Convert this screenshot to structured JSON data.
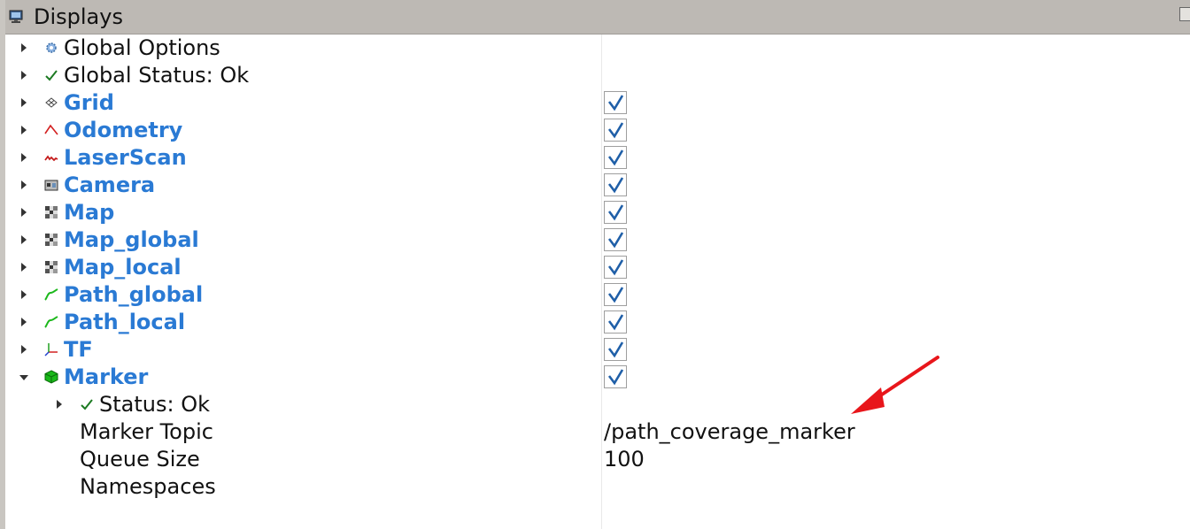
{
  "panel": {
    "title": "Displays"
  },
  "tree": {
    "rows": [
      {
        "label": "Global Options",
        "icon": "gear-icon",
        "kind": "plain"
      },
      {
        "label": "Global Status: Ok",
        "icon": "checkmark-icon",
        "kind": "plain"
      },
      {
        "label": "Grid",
        "icon": "grid-icon",
        "kind": "display",
        "enabled": true
      },
      {
        "label": "Odometry",
        "icon": "odometry-icon",
        "kind": "display",
        "enabled": true
      },
      {
        "label": "LaserScan",
        "icon": "laserscan-icon",
        "kind": "display",
        "enabled": true
      },
      {
        "label": "Camera",
        "icon": "camera-icon",
        "kind": "display",
        "enabled": true
      },
      {
        "label": "Map",
        "icon": "map-icon",
        "kind": "display",
        "enabled": true
      },
      {
        "label": "Map_global",
        "icon": "map-icon",
        "kind": "display",
        "enabled": true
      },
      {
        "label": "Map_local",
        "icon": "map-icon",
        "kind": "display",
        "enabled": true
      },
      {
        "label": "Path_global",
        "icon": "path-icon",
        "kind": "display",
        "enabled": true
      },
      {
        "label": "Path_local",
        "icon": "path-icon",
        "kind": "display",
        "enabled": true
      },
      {
        "label": "TF",
        "icon": "tf-axes-icon",
        "kind": "display",
        "enabled": true
      },
      {
        "label": "Marker",
        "icon": "marker-cube-icon",
        "kind": "display",
        "enabled": true,
        "expanded": true
      }
    ],
    "marker_children": {
      "status": {
        "label": "Status: Ok",
        "icon": "checkmark-icon"
      },
      "topic": {
        "label": "Marker Topic",
        "value": "/path_coverage_marker"
      },
      "queue": {
        "label": "Queue Size",
        "value": "100"
      },
      "namespaces": {
        "label": "Namespaces"
      }
    }
  },
  "colors": {
    "display_label": "#2a7ad4",
    "checkmark": "#1f5fa8",
    "annotation_arrow": "#e8161b"
  }
}
